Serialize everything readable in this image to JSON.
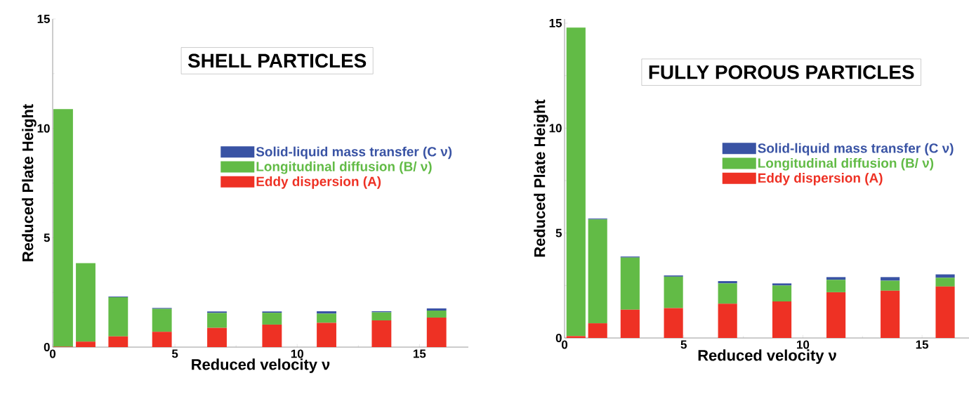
{
  "chart_data": [
    {
      "type": "bar",
      "stacked": true,
      "title": "SHELL PARTICLES",
      "xlabel": "Reduced velocity ν",
      "ylabel": "Reduced Plate Height",
      "legend": "right",
      "x": [
        0.43,
        1.35,
        2.68,
        4.47,
        6.72,
        8.97,
        11.2,
        13.45,
        15.7
      ],
      "series": [
        {
          "name": "Eddy dispersion (A)",
          "color": "#ee3124",
          "values": [
            0.02,
            0.25,
            0.49,
            0.7,
            0.88,
            1.03,
            1.11,
            1.22,
            1.35
          ]
        },
        {
          "name": "Longitudinal diffusion (B/ ν)",
          "color": "#62bb46",
          "values": [
            10.86,
            3.59,
            1.79,
            1.05,
            0.68,
            0.54,
            0.42,
            0.37,
            0.32
          ]
        },
        {
          "name": "Solid-liquid mass transfer (C ν)",
          "color": "#3953a4",
          "values": [
            null,
            null,
            0.03,
            0.04,
            0.07,
            0.06,
            0.11,
            0.05,
            0.1
          ]
        }
      ],
      "xlim": [
        0,
        17
      ],
      "ylim": [
        0,
        15
      ],
      "xticks": [
        0,
        5,
        10,
        15
      ],
      "yticks": [
        0,
        5,
        10,
        15
      ]
    },
    {
      "type": "bar",
      "stacked": true,
      "title": "FULLY POROUS PARTICLES",
      "xlabel": "Reduced velocity ν",
      "ylabel": "Reduced Plate Height",
      "legend": "right",
      "x": [
        0.48,
        1.39,
        2.75,
        4.57,
        6.84,
        9.12,
        11.39,
        13.66,
        15.97
      ],
      "series": [
        {
          "name": "Eddy dispersion (A)",
          "color": "#ee3124",
          "values": [
            0.09,
            0.7,
            1.35,
            1.42,
            1.63,
            1.74,
            2.18,
            2.25,
            2.45
          ]
        },
        {
          "name": "Longitudinal diffusion (B/ ν)",
          "color": "#62bb46",
          "values": [
            14.7,
            4.95,
            2.48,
            1.5,
            0.97,
            0.76,
            0.59,
            0.48,
            0.42
          ]
        },
        {
          "name": "Solid-liquid mass transfer (C ν)",
          "color": "#3953a4",
          "values": [
            null,
            0.04,
            0.05,
            0.06,
            0.11,
            0.1,
            0.13,
            0.17,
            0.16
          ]
        }
      ],
      "xlim": [
        0,
        17
      ],
      "ylim": [
        0,
        15.2
      ],
      "xticks": [
        0,
        5,
        10,
        15
      ],
      "yticks": [
        0,
        5,
        10,
        15
      ]
    }
  ]
}
